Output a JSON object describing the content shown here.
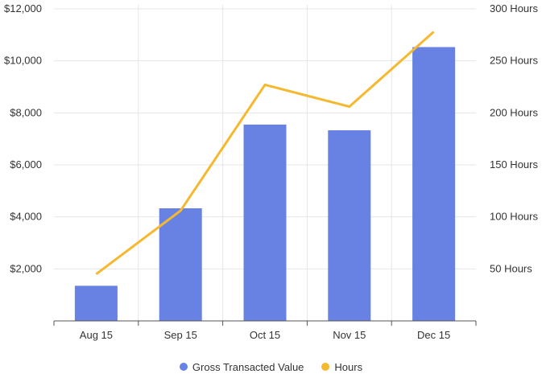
{
  "chart_data": {
    "type": "bar",
    "categories": [
      "Aug 15",
      "Sep 15",
      "Oct 15",
      "Nov 15",
      "Dec 15"
    ],
    "series": [
      {
        "name": "Gross Transacted Value",
        "type": "bar",
        "axis": "left",
        "color": "#6882e3",
        "values": [
          1350,
          4330,
          7550,
          7330,
          10530
        ]
      },
      {
        "name": "Hours",
        "type": "line",
        "axis": "right",
        "color": "#f5b82e",
        "values": [
          45,
          106,
          227,
          206,
          278
        ]
      }
    ],
    "y_left": {
      "ylim": [
        0,
        12000
      ],
      "ticks": [
        2000,
        4000,
        6000,
        8000,
        10000,
        12000
      ],
      "tick_labels": [
        "$2,000",
        "$4,000",
        "$6,000",
        "$8,000",
        "$10,000",
        "$12,000"
      ]
    },
    "y_right": {
      "ylim": [
        0,
        300
      ],
      "ticks": [
        50,
        100,
        150,
        200,
        250,
        300
      ],
      "tick_labels": [
        "50 Hours",
        "100 Hours",
        "150 Hours",
        "200 Hours",
        "250 Hours",
        "300 Hours"
      ]
    },
    "grid": true,
    "legend_position": "bottom-center"
  },
  "legend": {
    "items": [
      {
        "label": "Gross Transacted Value",
        "color": "#6882e3"
      },
      {
        "label": "Hours",
        "color": "#f5b82e"
      }
    ]
  }
}
